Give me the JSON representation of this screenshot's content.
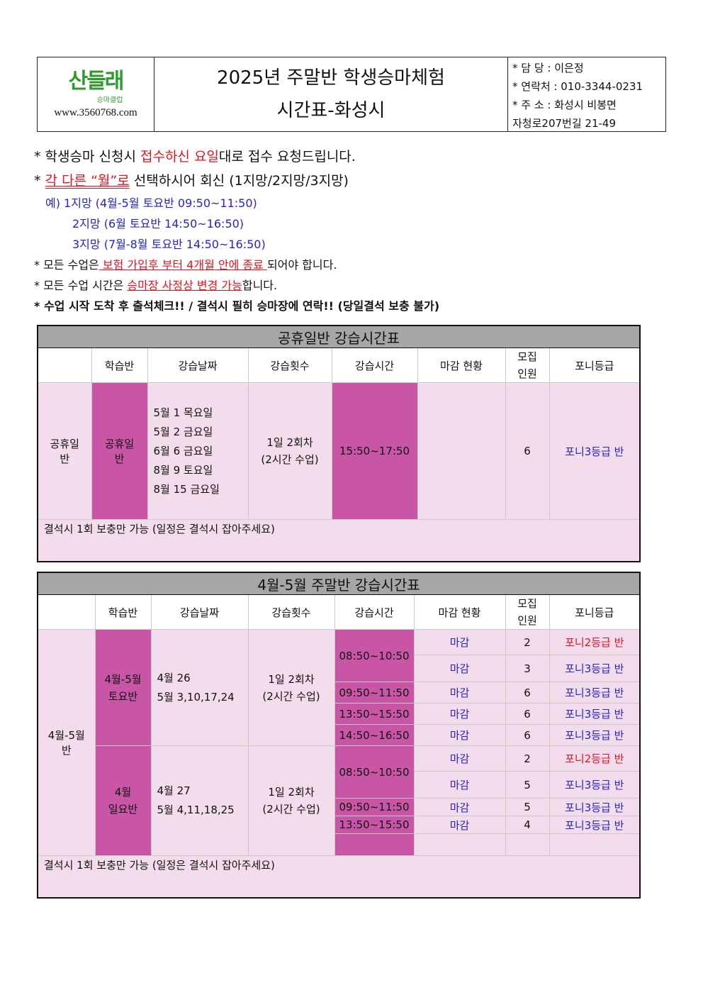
{
  "header": {
    "logo": {
      "brand": "산들래",
      "sub": "승마클럽",
      "url": "www.3560768.com"
    },
    "title_line1": "2025년 주말반 학생승마체험",
    "title_line2": "시간표-화성시",
    "contact": [
      "* 담  당 : 이은정",
      "* 연락처 : 010-3344-0231",
      "* 주  소 : 화성시 비봉면",
      "자청로207번길 21-49"
    ]
  },
  "notes": {
    "n1": {
      "a": "*  학생승마 신청시 ",
      "b": "접수하신 요일",
      "c": "대로 접수 요청드립니다."
    },
    "n2": {
      "a": "*  ",
      "b": "각 다른 “월”로",
      "c": " 선택하시어 회신 (1지망/2지망/3지망)"
    },
    "examples": [
      "예) 1지망 (4월-5월 토요반 09:50~11:50)",
      "2지망 (6월 토요반 14:50~16:50)",
      "3지망 (7월-8월 토요반 14:50~16:50)"
    ],
    "n3": {
      "a": "* 모든 수업은",
      "b": " 보험 가입후 부터 4개월 안에 종료 ",
      "c": "되어야 합니다."
    },
    "n4": {
      "a": "* 모든 수업 시간은 ",
      "b": "승마장 사정상 변경 가능",
      "c": "합니다."
    },
    "n5": "* 수업 시작 도착 후 출석체크!! / 결석시 필히 승마장에 연락!! (당일결석 보충 불가)"
  },
  "columns": [
    "학습반",
    "강습날짜",
    "강습횟수",
    "강습시간",
    "마감 현황",
    "모집\n인원",
    "포니등급"
  ],
  "colors": {
    "magenta": "#c955a7",
    "light_pink": "#f3dcec",
    "header_gray": "#a6a6a6",
    "grade2": "#e0141e",
    "grade3": "#2424c8"
  },
  "table1": {
    "title": "공휴일반 강습시간표",
    "group": "공휴일\n반",
    "class": "공휴일\n반",
    "dates": [
      "5월 1 목요일",
      "5월 2 금요일",
      "6월 6 금요일",
      "8월 9 토요일",
      "8월 15 금요일"
    ],
    "sessions": "1일 2회차\n(2시간 수업)",
    "time": "15:50~17:50",
    "status": "",
    "capacity": "6",
    "grade": "포니3등급 반",
    "note": "결석시 1회 보충만 가능 (일정은 결석시 잡아주세요)"
  },
  "table2": {
    "title": "4월-5월 주말반 강습시간표",
    "group": "4월-5월\n반",
    "sat": {
      "class": "4월-5월\n토요반",
      "dates": "4월 26\n5월 3,10,17,24",
      "sessions": "1일 2회차\n(2시간 수업)"
    },
    "sun": {
      "class": "4월\n일요반",
      "dates": "4월 27\n5월 4,11,18,25",
      "sessions": "1일 2회차\n(2시간 수업)"
    },
    "times": [
      "08:50~10:50",
      "09:50~11:50",
      "13:50~15:50",
      "14:50~16:50",
      "08:50~10:50",
      "09:50~11:50",
      "13:50~15:50"
    ],
    "rows": [
      {
        "status": "마감",
        "capacity": "2",
        "grade": "포니2등급 반"
      },
      {
        "status": "마감",
        "capacity": "3",
        "grade": "포니3등급 반"
      },
      {
        "status": "마감",
        "capacity": "6",
        "grade": "포니3등급 반"
      },
      {
        "status": "마감",
        "capacity": "6",
        "grade": "포니3등급 반"
      },
      {
        "status": "마감",
        "capacity": "6",
        "grade": "포니3등급 반"
      },
      {
        "status": "마감",
        "capacity": "2",
        "grade": "포니2등급 반"
      },
      {
        "status": "마감",
        "capacity": "5",
        "grade": "포니3등급 반"
      },
      {
        "status": "마감",
        "capacity": "5",
        "grade": "포니3등급 반"
      },
      {
        "status": "마감",
        "capacity": "4",
        "grade": "포니3등급 반"
      }
    ],
    "note": "결석시 1회 보충만 가능 (일정은 결석시 잡아주세요)"
  }
}
